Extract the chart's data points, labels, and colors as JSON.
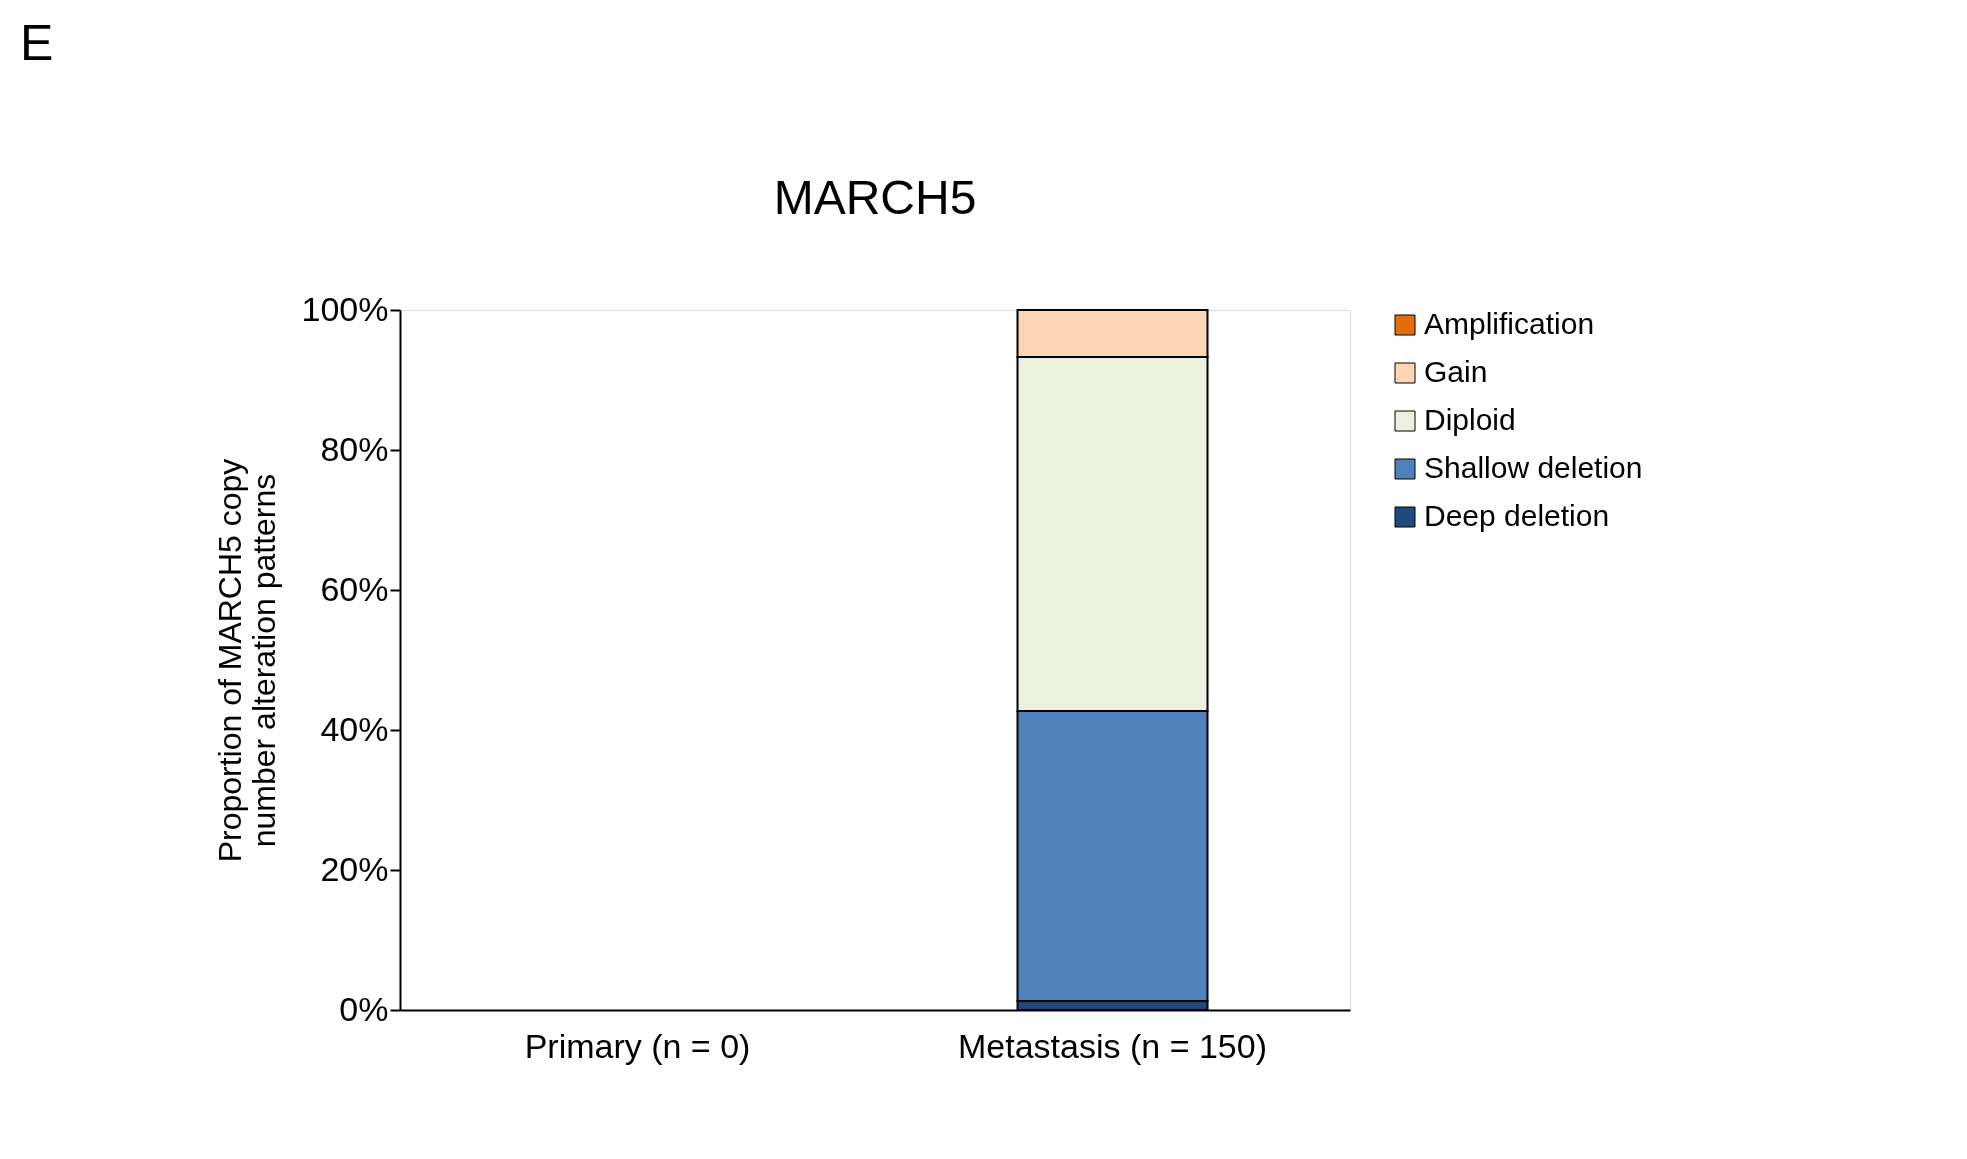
{
  "chart_data": {
    "type": "bar",
    "title": "MARCH5",
    "ylabel": "Proportion of MARCH5 copy number alteration patterns",
    "annotations": [
      "E"
    ],
    "categories": [
      "Primary (n = 0)",
      "Metastasis (n = 150)"
    ],
    "stacked": true,
    "series": [
      {
        "name": "Deep deletion",
        "color": "#1f497d",
        "values": [
          null,
          1.3
        ]
      },
      {
        "name": "Shallow deletion",
        "color": "#4f81bd",
        "values": [
          null,
          41.4
        ]
      },
      {
        "name": "Diploid",
        "color": "#ebf1de",
        "values": [
          null,
          50.6
        ]
      },
      {
        "name": "Gain",
        "color": "#fcd5b5",
        "values": [
          null,
          6.7
        ]
      },
      {
        "name": "Amplification",
        "color": "#e46c0a",
        "values": [
          null,
          null
        ]
      }
    ],
    "ylim": [
      0,
      100
    ],
    "yticks": [
      {
        "value": 0,
        "label": "0%"
      },
      {
        "value": 20,
        "label": "20%"
      },
      {
        "value": 40,
        "label": "40%"
      },
      {
        "value": 60,
        "label": "60%"
      },
      {
        "value": 80,
        "label": "80%"
      },
      {
        "value": 100,
        "label": "100%"
      }
    ],
    "grid": false,
    "legend": "right"
  }
}
